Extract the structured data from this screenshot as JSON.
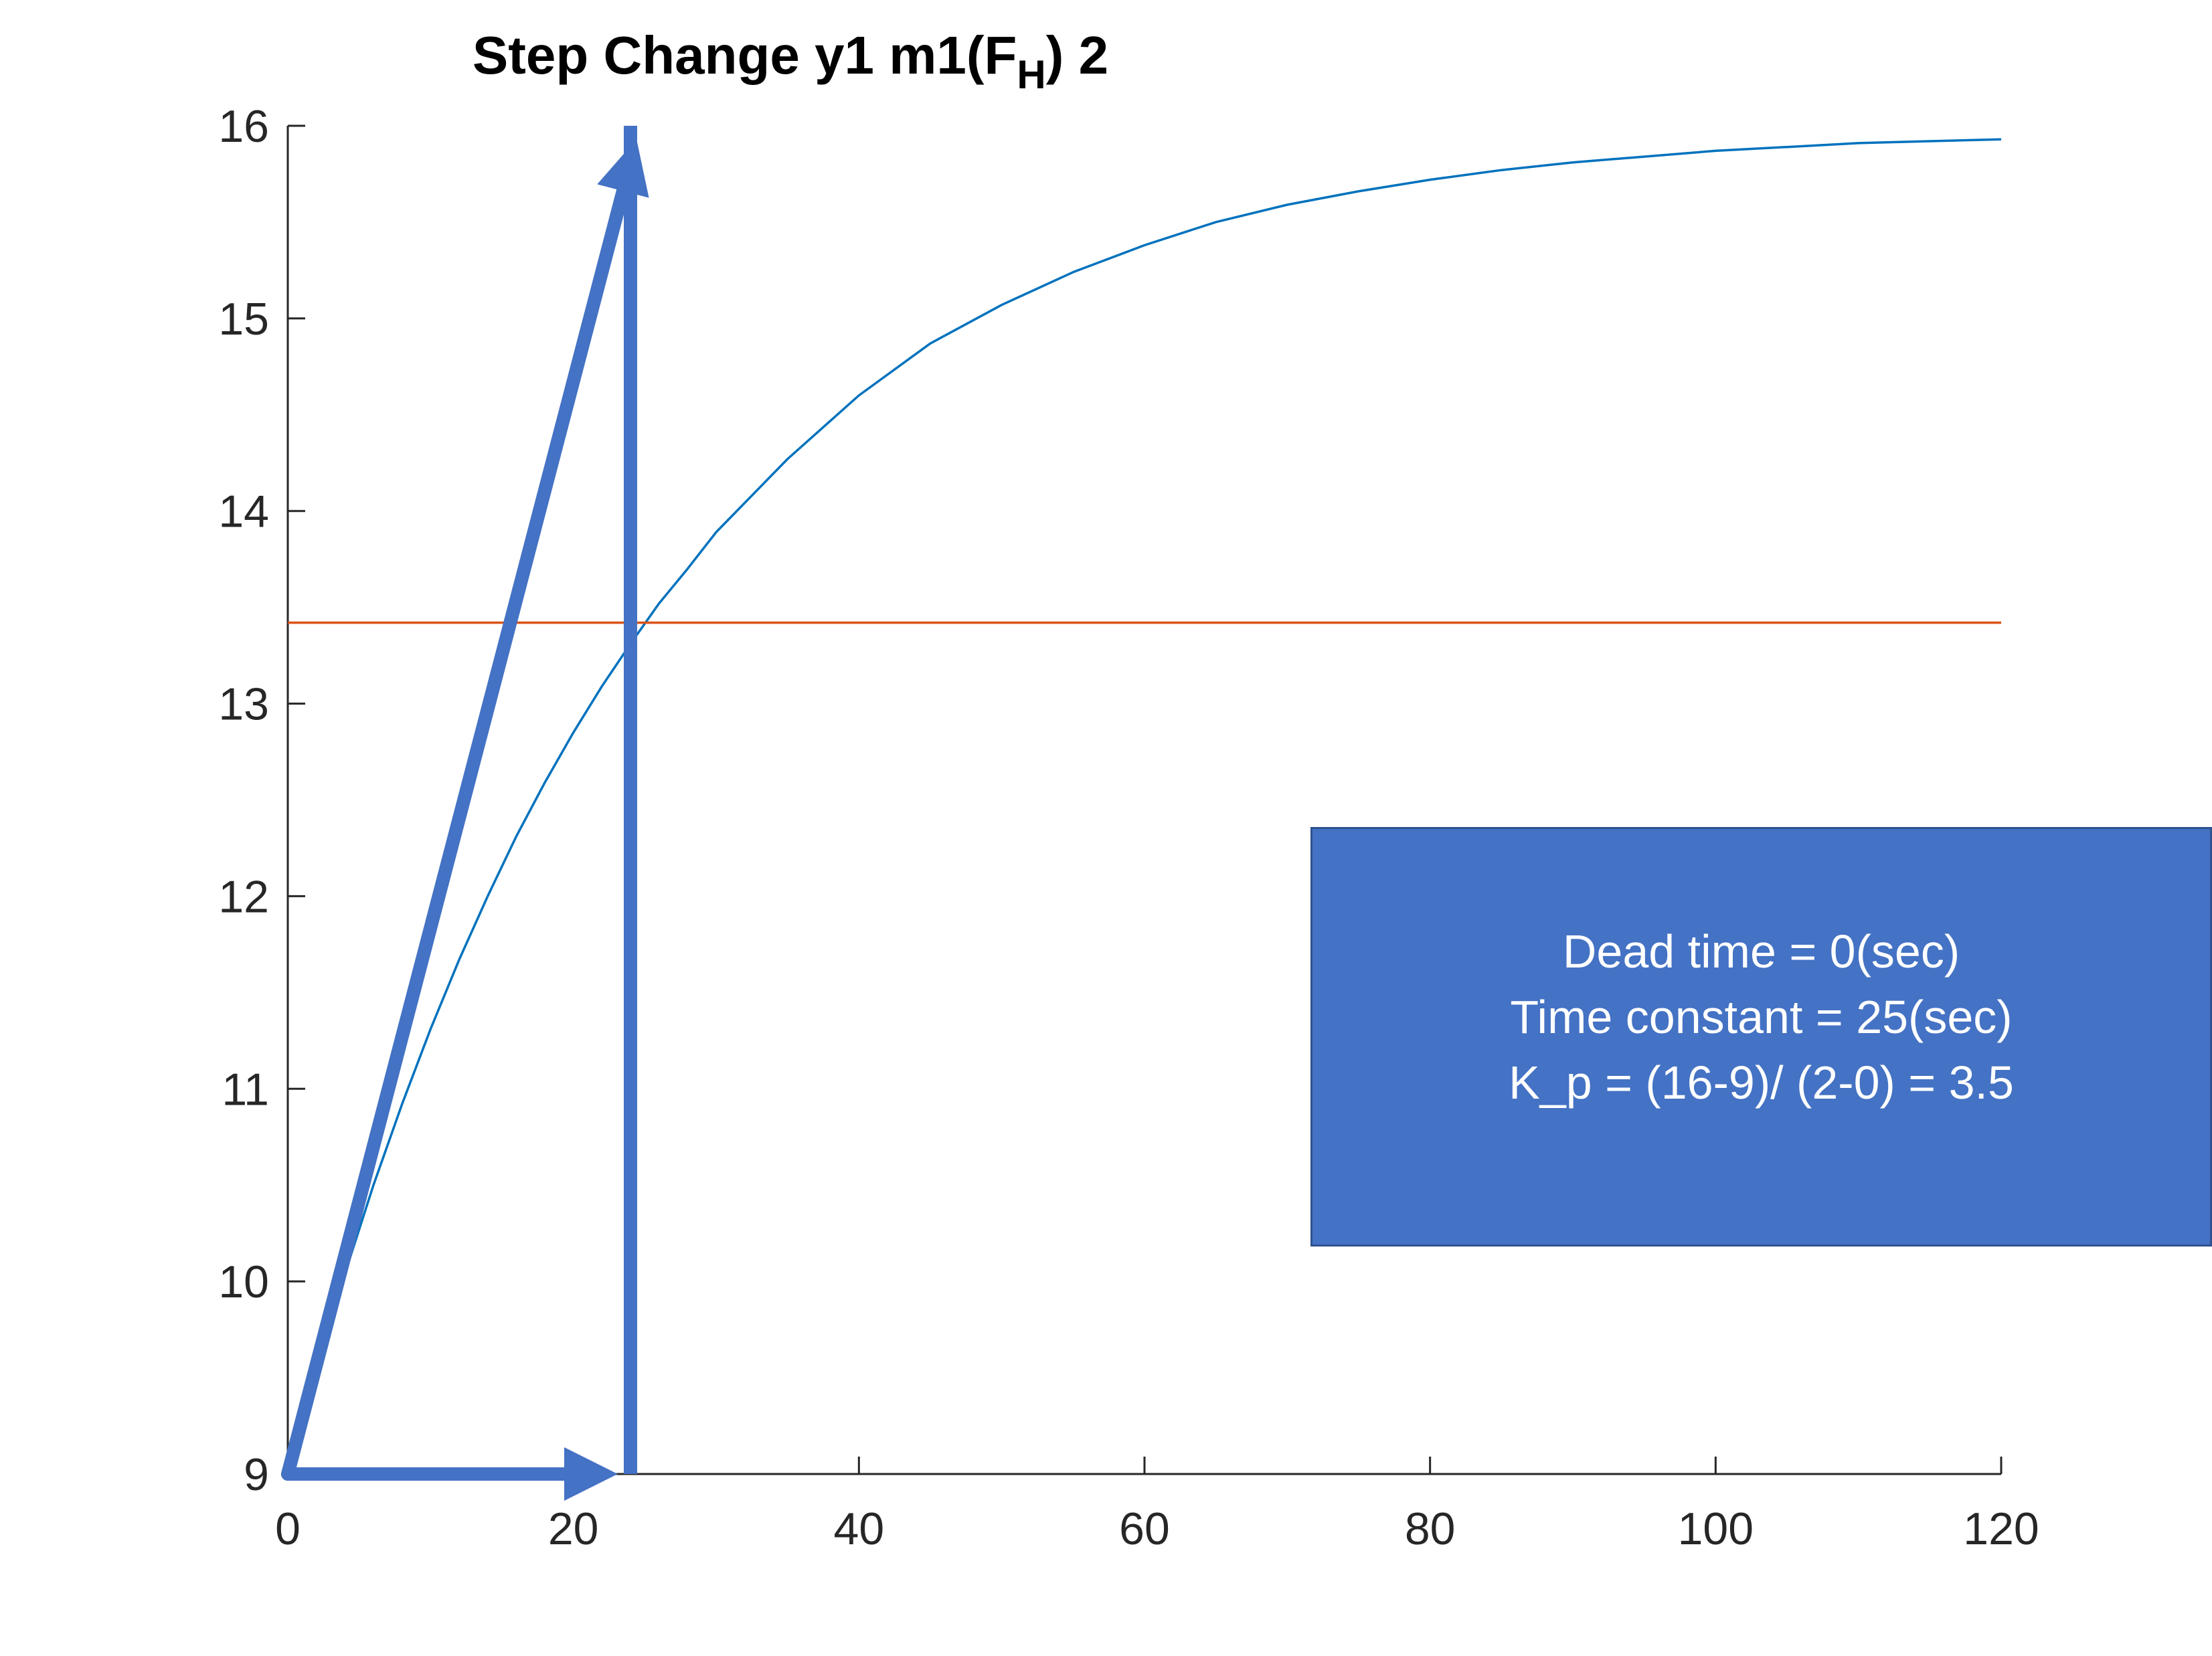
{
  "chart_data": {
    "type": "line",
    "title": "Step Change y1 m1(FH) 2",
    "title_parts": {
      "pre": "Step Change y1 m1(F",
      "sub": "H",
      "post": ") 2"
    },
    "xlabel": "",
    "ylabel": "",
    "xlim": [
      0,
      120
    ],
    "ylim": [
      9,
      16
    ],
    "xticks": [
      0,
      20,
      40,
      60,
      80,
      100,
      120
    ],
    "yticks": [
      9,
      10,
      11,
      12,
      13,
      14,
      15,
      16
    ],
    "grid": false,
    "series": [
      {
        "type": "curve",
        "color": "#0072bd",
        "x": [
          0,
          2,
          4,
          6,
          8,
          10,
          12,
          14,
          16,
          18,
          20,
          22,
          24,
          26,
          28,
          30,
          35,
          40,
          45,
          50,
          55,
          60,
          65,
          70,
          75,
          80,
          85,
          90,
          95,
          100,
          105,
          110,
          115,
          120
        ],
        "y": [
          9.0,
          9.54,
          10.04,
          10.5,
          10.92,
          11.31,
          11.67,
          12.0,
          12.31,
          12.59,
          12.85,
          13.09,
          13.31,
          13.52,
          13.7,
          13.89,
          14.27,
          14.6,
          14.87,
          15.07,
          15.24,
          15.38,
          15.5,
          15.59,
          15.66,
          15.72,
          15.77,
          15.81,
          15.84,
          15.87,
          15.89,
          15.91,
          15.92,
          15.93
        ]
      },
      {
        "type": "hline",
        "color": "#d95319",
        "x": [
          0,
          120
        ],
        "y": [
          13.42,
          13.42
        ]
      }
    ],
    "annotations": {
      "color": "#4472c4",
      "tangent_arrow": {
        "from": [
          0,
          9
        ],
        "to": [
          24,
          16
        ]
      },
      "vertical_line": {
        "from": [
          24,
          9
        ],
        "to": [
          24,
          16
        ]
      },
      "horizontal_arrow": {
        "from": [
          0,
          9
        ],
        "to": [
          24,
          9
        ]
      }
    }
  },
  "note": {
    "lines": [
      "Dead time = 0(sec)",
      "Time constant = 25(sec)",
      "K_p = (16-9)/ (2-0) = 3.5"
    ],
    "background": "#4472c4",
    "text_color": "#ffffff"
  }
}
